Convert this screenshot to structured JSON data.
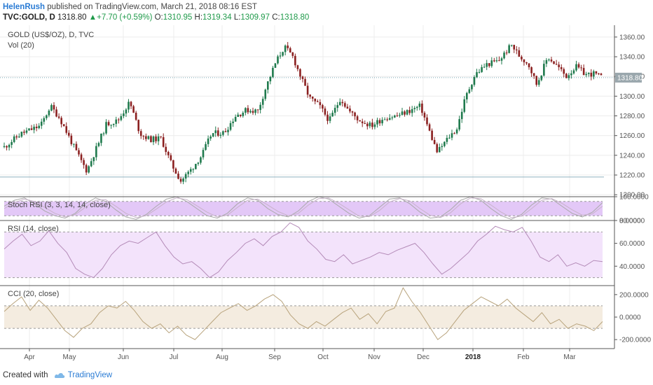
{
  "header": {
    "author": "HelenRush",
    "published": "published on TradingView.com, March 21, 2018 08:16 EST",
    "symbol": "TVC:GOLD, D",
    "last": "1318.80",
    "change": "+7.70 (+0.59%)",
    "open_label": "O:",
    "open": "1310.95",
    "high_label": "H:",
    "high": "1319.34",
    "low_label": "L:",
    "low": "1309.97",
    "close_label": "C:",
    "close": "1318.80"
  },
  "footer": {
    "created_with": "Created with",
    "brand": "TradingView"
  },
  "colors": {
    "up": "#1f7a4d",
    "down": "#8b2020",
    "grid": "#ececec",
    "border": "#555555",
    "price_badge": "#9aa7ad",
    "stoch_band": "#e3c8f7",
    "rsi_band": "#f3e3fb",
    "cci_band": "#f4ece0",
    "stoch_line": "#aaaaaa",
    "rsi_line": "#b48bb8",
    "cci_line": "#b8a37c"
  },
  "chart_data": [
    {
      "type": "candlestick",
      "title": "GOLD (US$/OZ), D, TVC",
      "subtitle": "Vol (20)",
      "ylim": [
        1198,
        1372
      ],
      "yticks": [
        1200,
        1220,
        1240,
        1260,
        1280,
        1300,
        1320,
        1340,
        1360
      ],
      "yticks_labels": [
        "1200.00",
        "1220.00",
        "1240.00",
        "1260.00",
        "1280.00",
        "1300.00",
        "1320.00",
        "1340.00",
        "1360.00"
      ],
      "xticks": [
        {
          "pos": 42,
          "label": "Apr"
        },
        {
          "pos": 99,
          "label": "May"
        },
        {
          "pos": 176,
          "label": "Jun"
        },
        {
          "pos": 248,
          "label": "Jul"
        },
        {
          "pos": 317,
          "label": "Aug"
        },
        {
          "pos": 392,
          "label": "Sep"
        },
        {
          "pos": 461,
          "label": "Oct"
        },
        {
          "pos": 534,
          "label": "Nov"
        },
        {
          "pos": 604,
          "label": "Dec"
        },
        {
          "pos": 675,
          "label": "2018"
        },
        {
          "pos": 747,
          "label": "Feb"
        },
        {
          "pos": 813,
          "label": "Mar"
        }
      ],
      "bold_xtick": "2018",
      "x_range": [
        0,
        877
      ],
      "reference_line": 1218,
      "price_badge": {
        "value": 1318.8,
        "label": "1318.80"
      },
      "price_path": [
        [
          0,
          1245
        ],
        [
          30,
          1262
        ],
        [
          58,
          1270
        ],
        [
          72,
          1290
        ],
        [
          85,
          1278
        ],
        [
          110,
          1242
        ],
        [
          124,
          1224
        ],
        [
          138,
          1248
        ],
        [
          152,
          1272
        ],
        [
          168,
          1275
        ],
        [
          185,
          1294
        ],
        [
          200,
          1262
        ],
        [
          214,
          1256
        ],
        [
          230,
          1257
        ],
        [
          244,
          1232
        ],
        [
          258,
          1214
        ],
        [
          272,
          1225
        ],
        [
          288,
          1240
        ],
        [
          302,
          1262
        ],
        [
          320,
          1263
        ],
        [
          336,
          1280
        ],
        [
          352,
          1286
        ],
        [
          368,
          1285
        ],
        [
          380,
          1310
        ],
        [
          394,
          1335
        ],
        [
          406,
          1350
        ],
        [
          418,
          1340
        ],
        [
          430,
          1318
        ],
        [
          442,
          1298
        ],
        [
          456,
          1290
        ],
        [
          470,
          1275
        ],
        [
          486,
          1298
        ],
        [
          498,
          1285
        ],
        [
          512,
          1276
        ],
        [
          530,
          1270
        ],
        [
          548,
          1278
        ],
        [
          566,
          1280
        ],
        [
          584,
          1285
        ],
        [
          600,
          1290
        ],
        [
          612,
          1266
        ],
        [
          624,
          1243
        ],
        [
          640,
          1258
        ],
        [
          652,
          1267
        ],
        [
          664,
          1298
        ],
        [
          678,
          1322
        ],
        [
          694,
          1332
        ],
        [
          712,
          1336
        ],
        [
          730,
          1352
        ],
        [
          742,
          1340
        ],
        [
          754,
          1333
        ],
        [
          766,
          1312
        ],
        [
          782,
          1340
        ],
        [
          796,
          1330
        ],
        [
          808,
          1320
        ],
        [
          822,
          1330
        ],
        [
          836,
          1322
        ],
        [
          848,
          1323
        ],
        [
          860,
          1318
        ]
      ]
    },
    {
      "type": "line",
      "title": "Stoch RSI (3, 3, 14, 14, close)",
      "ylim": [
        0,
        100
      ],
      "yticks_labels": [
        {
          "value": 100,
          "label": "100.0000"
        },
        {
          "value": 0,
          "label": "0.0000"
        }
      ],
      "band": [
        20,
        80
      ],
      "series": [
        {
          "values": [
            60,
            85,
            95,
            70,
            40,
            20,
            10,
            30,
            70,
            95,
            80,
            45,
            15,
            5,
            25,
            60,
            90,
            100,
            80,
            50,
            20,
            10,
            30,
            70,
            95,
            85,
            50,
            25,
            15,
            40,
            80,
            100,
            90,
            60,
            30,
            10,
            20,
            55,
            90,
            95,
            70,
            35,
            10,
            15,
            45,
            85,
            100,
            85,
            50,
            20,
            5,
            25,
            65,
            95,
            90,
            60,
            30,
            15,
            35,
            75
          ]
        },
        {
          "values": [
            50,
            75,
            90,
            80,
            55,
            30,
            15,
            25,
            55,
            85,
            88,
            60,
            30,
            12,
            20,
            48,
            78,
            95,
            88,
            62,
            35,
            15,
            22,
            55,
            85,
            90,
            65,
            38,
            20,
            30,
            65,
            92,
            95,
            72,
            45,
            18,
            16,
            42,
            78,
            92,
            82,
            50,
            22,
            12,
            32,
            70,
            95,
            92,
            65,
            35,
            12,
            18,
            50,
            85,
            92,
            72,
            45,
            22,
            28,
            60
          ]
        }
      ]
    },
    {
      "type": "line",
      "title": "RSI (14, close)",
      "ylim": [
        23,
        80
      ],
      "yticks_labels": [
        {
          "value": 80,
          "label": "80.0000"
        },
        {
          "value": 60,
          "label": "60.0000"
        },
        {
          "value": 40,
          "label": "40.0000"
        }
      ],
      "band": [
        30,
        70
      ],
      "series": [
        {
          "values": [
            55,
            62,
            68,
            58,
            62,
            71,
            60,
            52,
            38,
            33,
            30,
            38,
            50,
            58,
            62,
            60,
            65,
            70,
            58,
            48,
            42,
            44,
            38,
            30,
            35,
            45,
            52,
            60,
            64,
            58,
            66,
            70,
            78,
            74,
            62,
            55,
            46,
            44,
            50,
            42,
            45,
            48,
            52,
            50,
            54,
            57,
            60,
            52,
            42,
            33,
            38,
            45,
            52,
            62,
            68,
            75,
            72,
            70,
            74,
            62,
            48,
            44,
            50,
            40,
            43,
            40,
            45,
            44
          ]
        }
      ]
    },
    {
      "type": "line",
      "title": "CCI (20, close)",
      "ylim": [
        -280,
        280
      ],
      "yticks_labels": [
        {
          "value": 200,
          "label": "200.0000"
        },
        {
          "value": 0,
          "label": "0.0000"
        },
        {
          "value": -200,
          "label": "-200.0000"
        }
      ],
      "band": [
        -100,
        100
      ],
      "series": [
        {
          "values": [
            50,
            120,
            180,
            60,
            150,
            80,
            -20,
            -120,
            -180,
            -100,
            -60,
            40,
            100,
            80,
            140,
            60,
            -40,
            -100,
            -60,
            -140,
            -80,
            -160,
            -200,
            -120,
            -40,
            40,
            80,
            120,
            60,
            100,
            160,
            200,
            140,
            20,
            -60,
            -100,
            -40,
            -80,
            -20,
            40,
            80,
            -20,
            30,
            -60,
            50,
            80,
            260,
            140,
            40,
            -80,
            -200,
            -140,
            -40,
            60,
            120,
            180,
            140,
            100,
            160,
            80,
            20,
            -40,
            40,
            -60,
            -20,
            -100,
            -60,
            -80,
            -120,
            -40
          ]
        }
      ]
    }
  ]
}
